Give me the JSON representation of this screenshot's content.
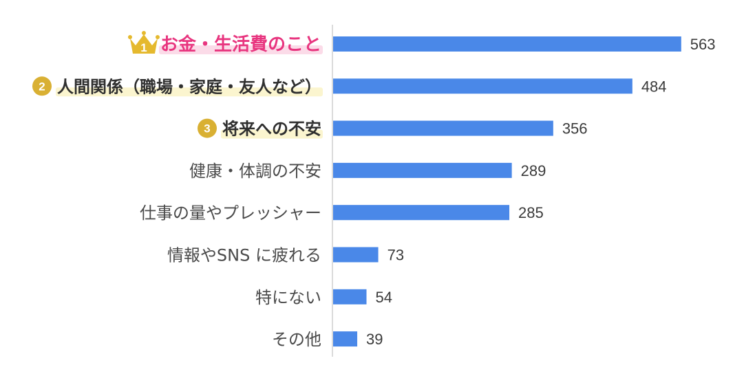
{
  "chart_data": {
    "type": "bar",
    "orientation": "horizontal",
    "categories": [
      "お金・生活費のこと",
      "人間関係（職場・家庭・友人など）",
      "将来への不安",
      "健康・体調の不安",
      "仕事の量やプレッシャー",
      "情報やSNS に疲れる",
      "特にない",
      "その他"
    ],
    "values": [
      563,
      484,
      356,
      289,
      285,
      73,
      54,
      39
    ],
    "ranks": [
      "1",
      "2",
      "3"
    ],
    "xlim": [
      0,
      620
    ],
    "grid": false
  },
  "colors": {
    "bar": "#4a88e8",
    "axis": "#cfcfcf",
    "rank1_text": "#e8357f",
    "rank1_highlight": "#fbdbe8",
    "rank_badge": "#d9b033",
    "rank_highlight": "#fbf5cf",
    "crown": "#e5b92e"
  },
  "icons": {
    "rank1": "crown-icon",
    "rank2": "rank-badge-icon",
    "rank3": "rank-badge-icon"
  }
}
